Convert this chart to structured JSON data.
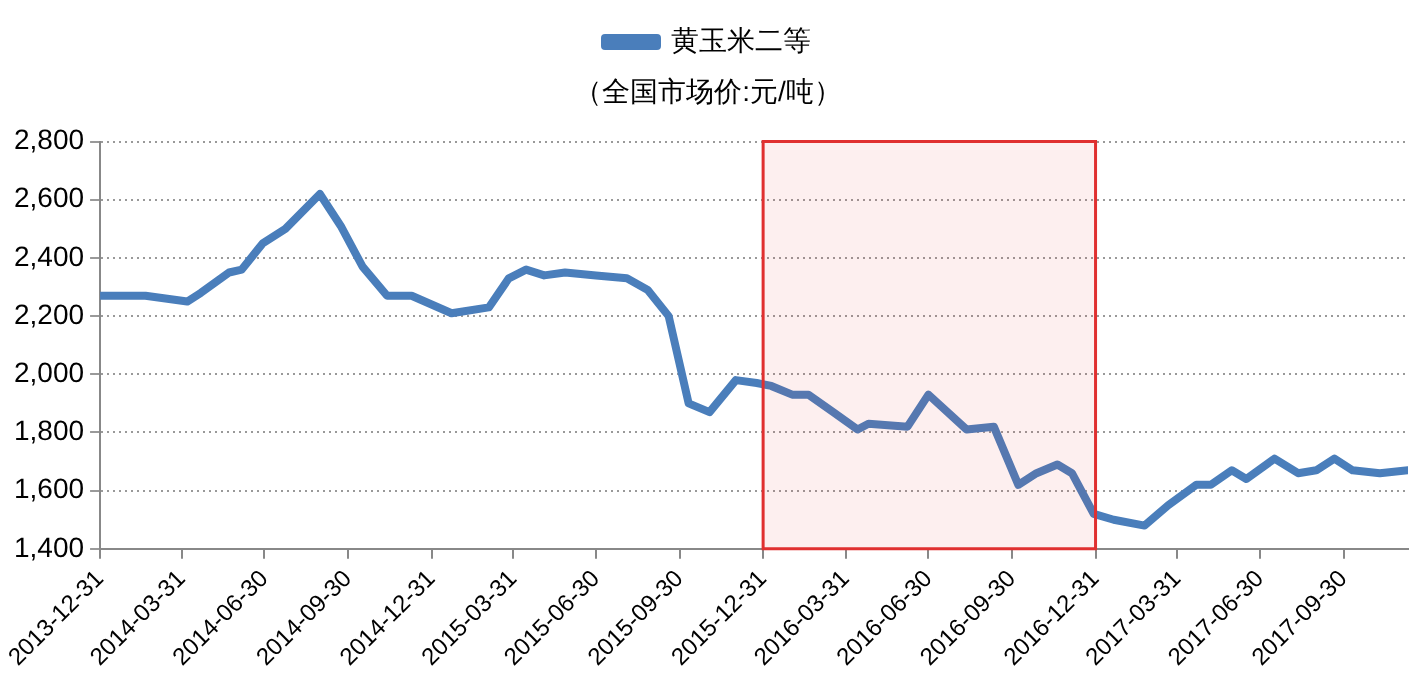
{
  "chart_data": {
    "type": "line",
    "subtitle": "（全国市场价:元/吨）",
    "x": [
      "2013-12-31",
      "2014-02-19",
      "2014-04-06",
      "2014-04-21",
      "2014-05-22",
      "2014-06-05",
      "2014-06-28",
      "2014-07-23",
      "2014-08-30",
      "2014-09-22",
      "2014-10-16",
      "2014-11-12",
      "2014-12-09",
      "2015-01-22",
      "2015-03-04",
      "2015-03-26",
      "2015-04-14",
      "2015-05-04",
      "2015-05-27",
      "2015-06-30",
      "2015-08-03",
      "2015-08-26",
      "2015-09-18",
      "2015-10-10",
      "2015-11-02",
      "2015-12-01",
      "2015-12-24",
      "2016-01-09",
      "2016-02-01",
      "2016-02-19",
      "2016-03-17",
      "2016-04-13",
      "2016-04-25",
      "2016-06-07",
      "2016-06-30",
      "2016-08-11",
      "2016-09-10",
      "2016-10-07",
      "2016-10-27",
      "2016-11-19",
      "2016-12-05",
      "2016-12-29",
      "2017-01-20",
      "2017-02-23",
      "2017-03-21",
      "2017-04-21",
      "2017-05-07",
      "2017-05-30",
      "2017-06-15",
      "2017-07-16",
      "2017-08-11",
      "2017-08-31",
      "2017-09-20",
      "2017-10-10",
      "2017-11-09",
      "2017-12-10"
    ],
    "series": [
      {
        "name": "黄玉米二等",
        "color": "#4a7ebb",
        "values": [
          2270,
          2270,
          2250,
          2280,
          2350,
          2360,
          2450,
          2500,
          2620,
          2510,
          2370,
          2270,
          2270,
          2210,
          2230,
          2330,
          2360,
          2340,
          2350,
          2340,
          2330,
          2290,
          2200,
          1900,
          1870,
          1980,
          1970,
          1960,
          1930,
          1930,
          1870,
          1810,
          1830,
          1820,
          1930,
          1810,
          1820,
          1620,
          1660,
          1690,
          1660,
          1520,
          1500,
          1480,
          1550,
          1620,
          1620,
          1670,
          1640,
          1710,
          1660,
          1670,
          1710,
          1670,
          1660,
          1670
        ]
      }
    ],
    "xlim": [
      "2013-12-31",
      "2017-12-10"
    ],
    "xticks": [
      "2013-12-31",
      "2014-03-31",
      "2014-06-30",
      "2014-09-30",
      "2014-12-31",
      "2015-03-31",
      "2015-06-30",
      "2015-09-30",
      "2015-12-31",
      "2016-03-31",
      "2016-06-30",
      "2016-09-30",
      "2016-12-31",
      "2017-03-31",
      "2017-06-30",
      "2017-09-30"
    ],
    "ylim": [
      1400,
      2800
    ],
    "yticks": [
      {
        "value": 1400,
        "label": "1,400"
      },
      {
        "value": 1600,
        "label": "1,600"
      },
      {
        "value": 1800,
        "label": "1,800"
      },
      {
        "value": 2000,
        "label": "2,000"
      },
      {
        "value": 2200,
        "label": "2,200"
      },
      {
        "value": 2400,
        "label": "2,400"
      },
      {
        "value": 2600,
        "label": "2,600"
      },
      {
        "value": 2800,
        "label": "2,800"
      }
    ],
    "bands": [
      {
        "axis": "x",
        "from": "2015-12-31",
        "to": "2016-12-31",
        "color": "#e03030"
      }
    ],
    "grid": "y",
    "legend": "top",
    "marker": "none",
    "line_style": "solid"
  }
}
